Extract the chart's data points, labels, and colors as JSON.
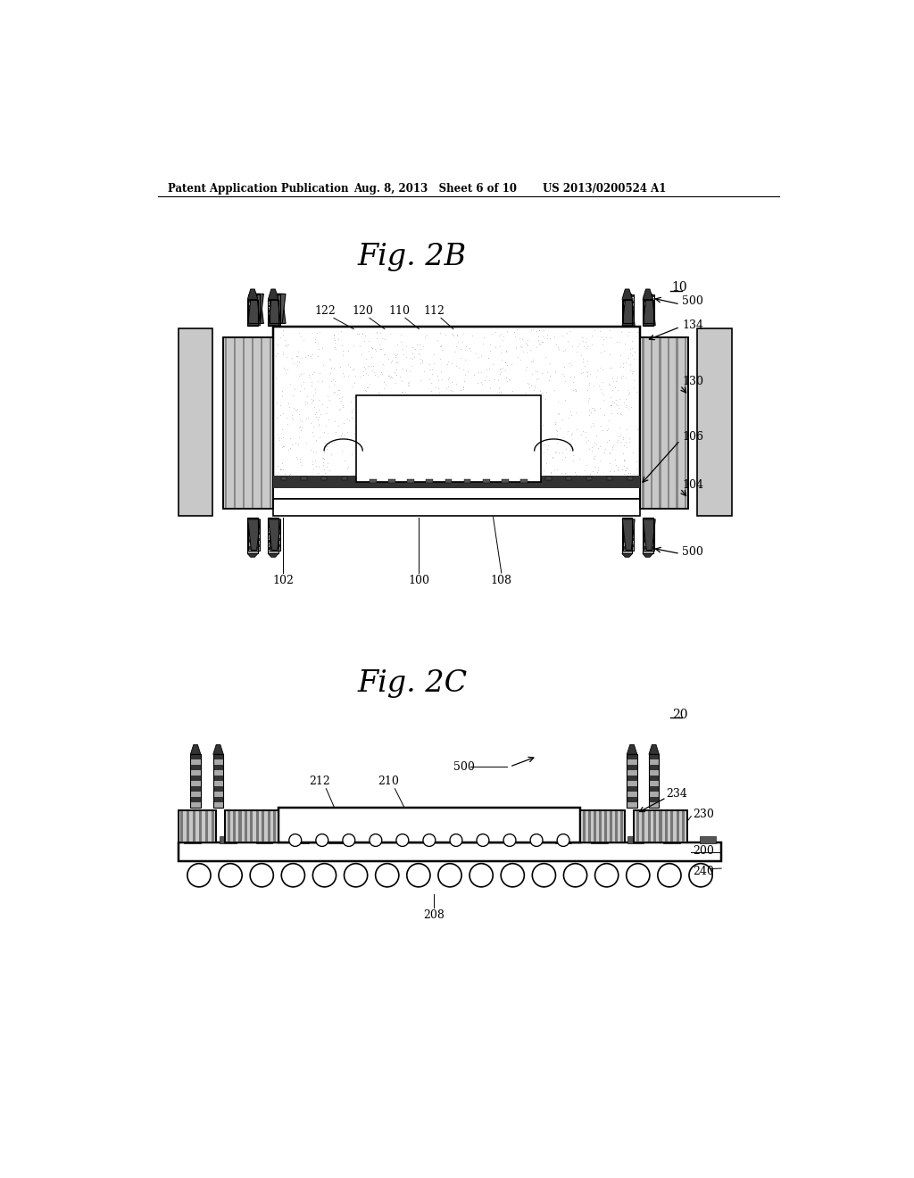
{
  "bg_color": "#ffffff",
  "header_left": "Patent Application Publication",
  "header_mid": "Aug. 8, 2013   Sheet 6 of 10",
  "header_right": "US 2013/0200524 A1",
  "fig2b_title": "Fig. 2B",
  "fig2c_title": "Fig. 2C",
  "ref_10": "10",
  "ref_20": "20",
  "line_color": "#000000",
  "fill_light": "#c8c8c8",
  "fill_dark": "#555555",
  "stipple": "#aaaaaa"
}
